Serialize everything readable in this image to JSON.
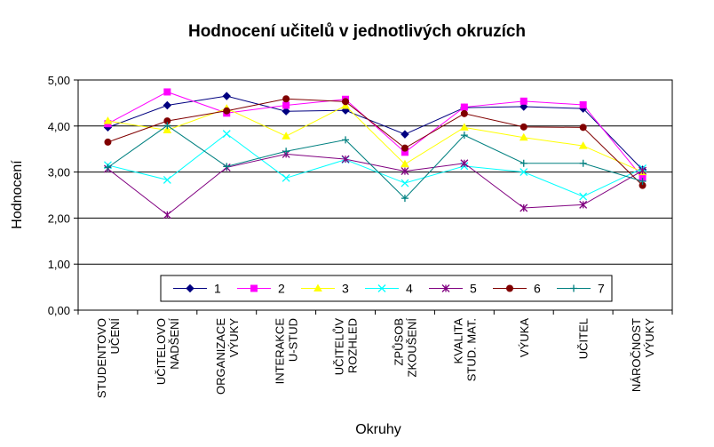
{
  "chart_data": {
    "type": "line",
    "title": "Hodnocení učitelů v jednotlivých okruzích",
    "xlabel": "Okruhy",
    "ylabel": "Hodnocení",
    "ylim": [
      0,
      5
    ],
    "yticks": [
      "0,00",
      "1,00",
      "2,00",
      "3,00",
      "4,00",
      "5,00"
    ],
    "grid": true,
    "legend_position": "bottom-inside",
    "categories": [
      [
        "STUDENTOVO",
        "UČENÍ"
      ],
      [
        "UČITELOVO",
        "NADŠENÍ"
      ],
      [
        "ORGANIZACE",
        "VÝUKY"
      ],
      [
        "INTERAKCE",
        "U-STUD"
      ],
      [
        "UČITELŮV",
        "ROZHLED"
      ],
      [
        "ZPŮSOB",
        "ZKOUŠENÍ"
      ],
      [
        "KVALITA",
        "STUD. MAT."
      ],
      [
        "VÝUKA"
      ],
      [
        "UČITEL"
      ],
      [
        "NÁROČNOST",
        "VÝUKY"
      ]
    ],
    "series": [
      {
        "name": "1",
        "color": "#000080",
        "marker": "diamond",
        "values": [
          3.97,
          4.45,
          4.65,
          4.32,
          4.34,
          3.82,
          4.4,
          4.42,
          4.38,
          3.05
        ]
      },
      {
        "name": "2",
        "color": "#ff00ff",
        "marker": "square",
        "values": [
          4.05,
          4.74,
          4.28,
          4.45,
          4.58,
          3.43,
          4.41,
          4.54,
          4.46,
          2.88
        ]
      },
      {
        "name": "3",
        "color": "#ffff00",
        "marker": "triangle",
        "values": [
          4.11,
          3.91,
          4.38,
          3.78,
          4.44,
          3.17,
          3.97,
          3.75,
          3.57,
          3.0
        ]
      },
      {
        "name": "4",
        "color": "#00ffff",
        "marker": "x",
        "values": [
          3.15,
          2.83,
          3.83,
          2.87,
          3.27,
          2.76,
          3.13,
          3.0,
          2.47,
          3.08
        ]
      },
      {
        "name": "5",
        "color": "#800080",
        "marker": "star",
        "values": [
          3.07,
          2.07,
          3.1,
          3.39,
          3.28,
          3.02,
          3.19,
          2.22,
          2.29,
          3.03
        ]
      },
      {
        "name": "6",
        "color": "#800000",
        "marker": "circle",
        "values": [
          3.65,
          4.11,
          4.33,
          4.59,
          4.53,
          3.52,
          4.27,
          3.98,
          3.97,
          2.71
        ]
      },
      {
        "name": "7",
        "color": "#008080",
        "marker": "plus",
        "values": [
          3.1,
          4.01,
          3.12,
          3.45,
          3.7,
          2.43,
          3.8,
          3.19,
          3.19,
          2.8
        ]
      }
    ]
  }
}
